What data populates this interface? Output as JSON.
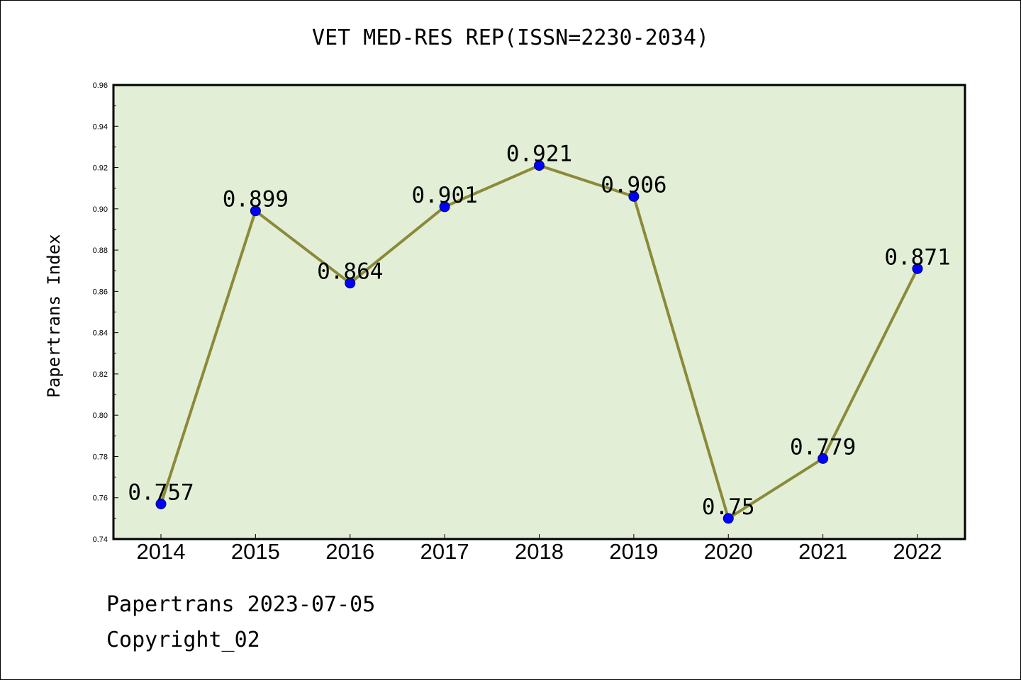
{
  "chart_data": {
    "type": "line",
    "title": "VET MED-RES REP(ISSN=2230-2034)",
    "xlabel": "",
    "ylabel": "Papertrans Index",
    "categories": [
      "2014",
      "2015",
      "2016",
      "2017",
      "2018",
      "2019",
      "2020",
      "2021",
      "2022"
    ],
    "series": [
      {
        "values": [
          0.757,
          0.899,
          0.864,
          0.901,
          0.921,
          0.906,
          0.75,
          0.779,
          0.871
        ]
      }
    ],
    "data_labels": [
      "0.757",
      "0.899",
      "0.864",
      "0.901",
      "0.921",
      "0.906",
      "0.75",
      "0.779",
      "0.871"
    ],
    "ylim": [
      0.74,
      0.96
    ],
    "yticks": [
      "0.74",
      "0.76",
      "0.78",
      "0.80",
      "0.82",
      "0.84",
      "0.86",
      "0.88",
      "0.90",
      "0.92",
      "0.94",
      "0.96"
    ],
    "grid": false,
    "legend": "none",
    "colors": {
      "plot_background": "#e2efd6",
      "line": "#8b8a3a",
      "marker": "#0000ff"
    }
  },
  "footer": {
    "source": "Papertrans 2023-07-05",
    "copyright": "Copyright_02"
  }
}
